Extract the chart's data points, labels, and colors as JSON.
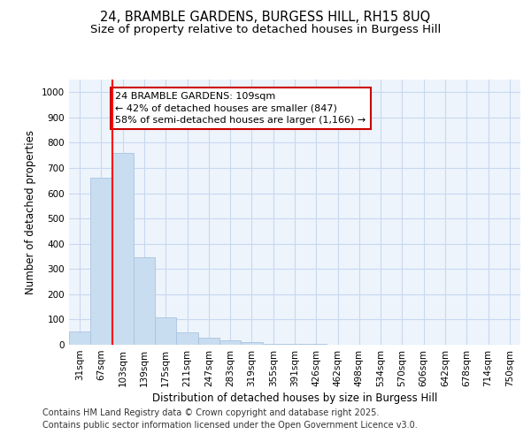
{
  "title_line1": "24, BRAMBLE GARDENS, BURGESS HILL, RH15 8UQ",
  "title_line2": "Size of property relative to detached houses in Burgess Hill",
  "xlabel": "Distribution of detached houses by size in Burgess Hill",
  "ylabel": "Number of detached properties",
  "categories": [
    "31sqm",
    "67sqm",
    "103sqm",
    "139sqm",
    "175sqm",
    "211sqm",
    "247sqm",
    "283sqm",
    "319sqm",
    "355sqm",
    "391sqm",
    "426sqm",
    "462sqm",
    "498sqm",
    "534sqm",
    "570sqm",
    "606sqm",
    "642sqm",
    "678sqm",
    "714sqm",
    "750sqm"
  ],
  "values": [
    52,
    662,
    758,
    347,
    110,
    50,
    28,
    18,
    12,
    5,
    2,
    2,
    0,
    0,
    0,
    0,
    0,
    0,
    0,
    0,
    0
  ],
  "bar_color": "#c9ddf0",
  "bar_edge_color": "#a8c4e0",
  "red_line_index": 2,
  "annotation_text": "24 BRAMBLE GARDENS: 109sqm\n← 42% of detached houses are smaller (847)\n58% of semi-detached houses are larger (1,166) →",
  "annotation_box_color": "#ffffff",
  "annotation_box_edge_color": "#cc0000",
  "ylim": [
    0,
    1050
  ],
  "yticks": [
    0,
    100,
    200,
    300,
    400,
    500,
    600,
    700,
    800,
    900,
    1000
  ],
  "grid_color": "#c8d8f0",
  "plot_bg_color": "#eef4fc",
  "fig_bg_color": "#ffffff",
  "footer_line1": "Contains HM Land Registry data © Crown copyright and database right 2025.",
  "footer_line2": "Contains public sector information licensed under the Open Government Licence v3.0.",
  "title_fontsize": 10.5,
  "subtitle_fontsize": 9.5,
  "axis_label_fontsize": 8.5,
  "tick_fontsize": 7.5,
  "annotation_fontsize": 8,
  "footer_fontsize": 7
}
